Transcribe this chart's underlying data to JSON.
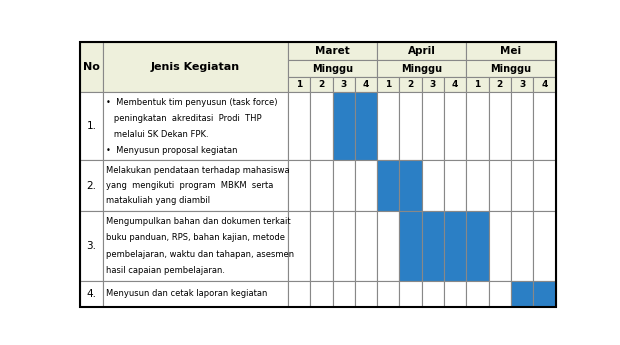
{
  "header_bg": "#eef0dc",
  "blue_color": "#2b7fc5",
  "border_color": "#888888",
  "months": [
    "Maret",
    "April",
    "Mei"
  ],
  "rows": [
    {
      "no": "1.",
      "lines": [
        "•  Membentuk tim penyusun (task force)",
        "   peningkatan  akreditasi  Prodi  THP",
        "   melalui SK Dekan FPK.",
        "•  Menyusun proposal kegiatan"
      ],
      "blue_cols": [
        2,
        3
      ]
    },
    {
      "no": "2.",
      "lines": [
        "Melakukan pendataan terhadap mahasiswa",
        "yang  mengikuti  program  MBKM  serta",
        "matakuliah yang diambil"
      ],
      "blue_cols": [
        4,
        5
      ]
    },
    {
      "no": "3.",
      "lines": [
        "Mengumpulkan bahan dan dokumen terkait",
        "buku panduan, RPS, bahan kajian, metode",
        "pembelajaran, waktu dan tahapan, asesmen",
        "hasil capaian pembelajaran."
      ],
      "blue_cols": [
        5,
        6,
        7,
        8
      ]
    },
    {
      "no": "4.",
      "lines": [
        "Menyusun dan cetak laporan kegiatan"
      ],
      "blue_cols": [
        10,
        11
      ]
    }
  ]
}
